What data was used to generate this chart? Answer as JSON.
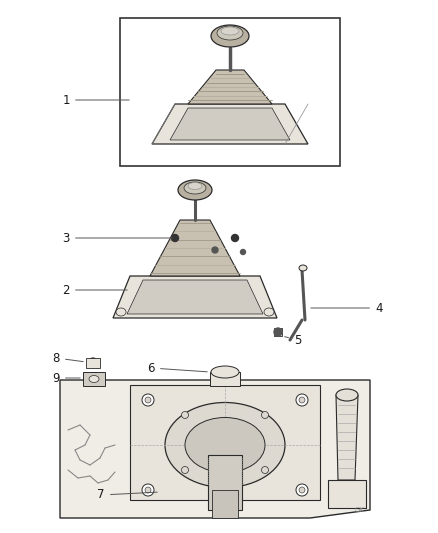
{
  "bg_color": "#ffffff",
  "line_color": "#2a2a2a",
  "gray": "#666666",
  "light_fill": "#f5f3ef",
  "med_fill": "#e8e4dc",
  "dark_fill": "#d0ccc4",
  "label_color": "#1a1a1a",
  "figsize": [
    4.38,
    5.33
  ],
  "dpi": 100
}
